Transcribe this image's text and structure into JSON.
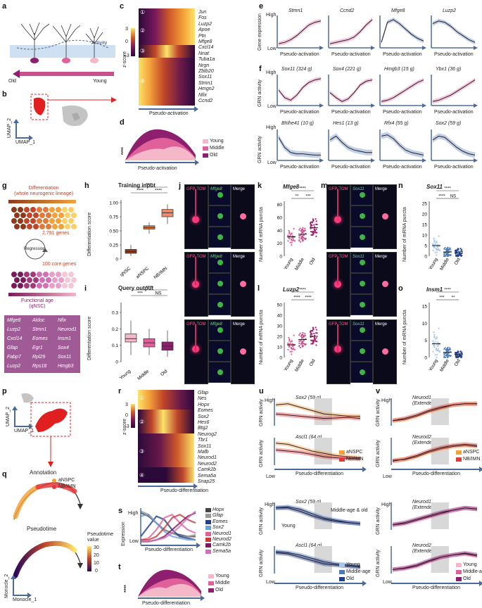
{
  "panels": [
    "a",
    "b",
    "c",
    "d",
    "e",
    "f",
    "g",
    "h",
    "i",
    "j",
    "k",
    "l",
    "m",
    "n",
    "o",
    "p",
    "q",
    "r",
    "s",
    "t",
    "u",
    "v"
  ],
  "panel_a": {
    "activity": "Activity",
    "old": "Old",
    "young": "Young"
  },
  "panel_b": {
    "umap1": "UMAP_1",
    "umap2": "UMAP_2"
  },
  "panel_c": {
    "zscore_label": "z-score",
    "scale": [
      "3",
      "0",
      "–3"
    ],
    "xlabel": "Pseudo-activation",
    "clusters": [
      "①",
      "②",
      "③",
      "④"
    ],
    "genes": [
      "Jun",
      "Fos",
      "Luzp2",
      "Apoe",
      "Ptn",
      "Mfge8",
      "Cxcl14",
      "Nnat",
      "Tuba1a",
      "Nrgn",
      "Zbtb20",
      "Sox11",
      "Stmn1",
      "Hmgn2",
      "Nfix",
      "Ccnd2"
    ]
  },
  "panel_d": {
    "xlabel": "Pseudo-activation",
    "sig": "****",
    "legend": [
      "Young",
      "Middle",
      "Old"
    ],
    "colors": [
      "#f4b8c8",
      "#e0609a",
      "#8e1e6e"
    ]
  },
  "panel_e": {
    "ylabel": "Gene expression",
    "high": "High",
    "low": "Low",
    "xlabel": "Pseudo-activation",
    "genes": [
      "Stmn1",
      "Ccnd2",
      "Mfge8",
      "Luzp2"
    ]
  },
  "panel_f": {
    "ylabel": "GRN activity",
    "high": "High",
    "low": "Low",
    "xlabel": "Pseudo-activation",
    "row1": [
      "Sox11 (324 g)",
      "Sox4 (221 g)",
      "Hmgb3 (15 g)",
      "Ybx1 (36 g)"
    ],
    "row2": [
      "Bhlhe41 (10 g)",
      "Hes1 (13 g)",
      "Rfx4 (55 g)",
      "Sox2 (59 g)"
    ]
  },
  "panel_g": {
    "diff_title": "Differentiation\n(whole neurogenic lineage)",
    "genes_count": "2,791 genes",
    "regression": "Regression",
    "core": "100 core genes",
    "functional_age": "Functional age\n(qNSC)",
    "gene_table": [
      "Mfge8",
      "Aldoc",
      "Nfix",
      "Luzp2",
      "Stmn1",
      "Neurod1",
      "Cxcl14",
      "Eomes",
      "Insm1",
      "Gfap",
      "Egr1",
      "Sox4",
      "Fabp7",
      "Rpl29",
      "Sox11",
      "Luzp2",
      "Rps18",
      "Hmgb3"
    ]
  },
  "panel_h": {
    "title": "Training input",
    "ylabel": "Differentiation score",
    "cats": [
      "qNSC",
      "aNSPC",
      "NB/IMN"
    ],
    "yticks": [
      "0",
      "0.25",
      "0.50",
      "0.75",
      "1.00"
    ],
    "sig": [
      "****",
      "****",
      "****"
    ]
  },
  "panel_i": {
    "title": "Query output",
    "ylabel": "Differentiation score",
    "cats": [
      "Young",
      "Middle",
      "Old"
    ],
    "yticks": [
      "0",
      "0.1",
      "0.2",
      "0.3"
    ],
    "sig": [
      "***",
      "NS",
      "****"
    ]
  },
  "panel_j": {
    "labels": [
      "GFP-TOM",
      "Mfge8",
      "Merge"
    ]
  },
  "panel_k": {
    "gene": "Mfge8",
    "ylabel": "Number of mRNA puncta",
    "cats": [
      "Young",
      "Middle",
      "Old"
    ],
    "yticks": [
      "0",
      "20",
      "40",
      "60",
      "80"
    ],
    "sig": [
      "****",
      "**",
      "***"
    ]
  },
  "panel_l": {
    "gene": "Luzp2",
    "ylabel": "Number of mRNA puncta",
    "cats": [
      "Young",
      "Middle",
      "Old"
    ],
    "yticks": [
      "0",
      "10",
      "20",
      "30",
      "40",
      "50"
    ],
    "sig": [
      "****",
      "****",
      "****"
    ]
  },
  "panel_m": {
    "labels": [
      "GFP-TOM",
      "Sox11",
      "Merge"
    ]
  },
  "panel_n": {
    "gene": "Sox11",
    "ylabel": "Number of mRNA puncta",
    "cats": [
      "Young",
      "Middle",
      "Old"
    ],
    "yticks": [
      "0",
      "5",
      "10",
      "15",
      "20",
      "25"
    ],
    "sig": [
      "****",
      "****",
      "NS"
    ]
  },
  "panel_o": {
    "gene": "Insm1",
    "ylabel": "Number of mRNA puncta",
    "cats": [
      "Young",
      "Middle",
      "Old"
    ],
    "yticks": [
      "0",
      "5",
      "10",
      "15"
    ],
    "sig": [
      "****",
      "***",
      "**"
    ]
  },
  "panel_p": {
    "umap1": "UMAP_1",
    "umap2": "UMAP_2"
  },
  "panel_q": {
    "annotation": "Annotation",
    "legend": [
      "aNSPC",
      "NB/IMN"
    ],
    "pseudotime": "Pseudotime",
    "pt_value": "Pseudotime\nvalue",
    "pt_ticks": [
      "30",
      "20",
      "10",
      "0"
    ],
    "mon1": "Monocle_1",
    "mon2": "Monocle_2"
  },
  "panel_r": {
    "zscore_label": "z-score",
    "scale": [
      "3",
      "0",
      "–3"
    ],
    "xlabel": "Pseudo-differentiation",
    "clusters": [
      "①",
      "②",
      "③",
      "④"
    ],
    "genes": [
      "Gfap",
      "Nes",
      "Hopx",
      "Eomes",
      "Sox2",
      "Hes6",
      "Btg2",
      "Neurog2",
      "Tbr1",
      "Sox11",
      "Mafb",
      "Neurod1",
      "Neurod2",
      "Camk2b",
      "Sema5a",
      "Snap25"
    ]
  },
  "panel_s": {
    "ylabel": "Expression",
    "high": "High",
    "low": "Low",
    "xlabel": "Pseudo-differentiation",
    "legend": [
      "Hopx",
      "Gfap",
      "Eomes",
      "Sox2",
      "Neurod1",
      "Neurod2",
      "Camk2b",
      "Sema5a"
    ],
    "colors": [
      "#444444",
      "#9a9a9a",
      "#1f3f8a",
      "#6aa0d8",
      "#e0609a",
      "#c63a3a",
      "#7a1a5a",
      "#d070b8"
    ]
  },
  "panel_t": {
    "xlabel": "Pseudo-differentiation",
    "sig": "****",
    "legend": [
      "Young",
      "Middle",
      "Old"
    ]
  },
  "panel_u": {
    "ylabel": "GRN activity",
    "high": "High",
    "low": "Low",
    "xlabel": "Pseudo-differentiation",
    "top": [
      "Sox2 (59 g)",
      "Ascl1 (64 g)"
    ],
    "top_legend": [
      "aNSPC",
      "NB/IMN"
    ],
    "bottom": [
      "Sox2 (59 g)",
      "Ascl1 (64 g)"
    ],
    "ann_mo": "Middle-age & old",
    "ann_young": "Young",
    "bottom_legend": [
      "Young",
      "Middle-age",
      "Old"
    ]
  },
  "panel_v": {
    "ylabel": "GRN activity",
    "high": "High",
    "low": "Low",
    "xlabel": "Pseudo-differentiation",
    "top": [
      "Neurod1\n(Extended 64 g)",
      "Neurod2\n(Extended 47 g)"
    ],
    "top_legend": [
      "aNSPC",
      "NB/IMN"
    ],
    "bottom": [
      "Neurod1\n(Extended 64 g)",
      "Neurod2\n(Extended 47 g)"
    ],
    "bottom_legend": [
      "Young",
      "Middle-age",
      "Old"
    ]
  }
}
